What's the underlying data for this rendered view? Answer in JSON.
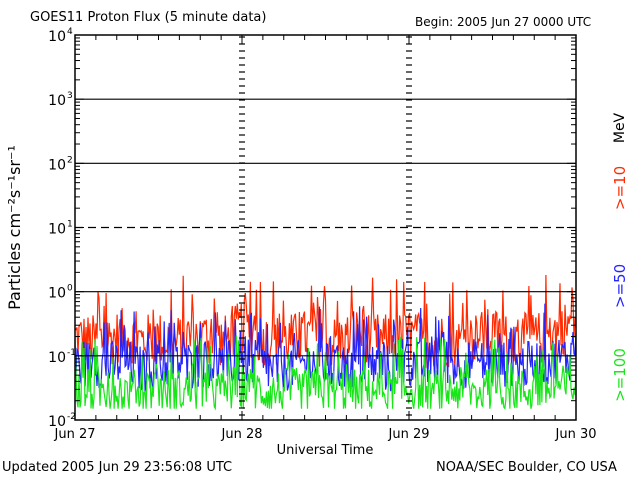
{
  "header": {
    "title": "GOES11 Proton Flux (5 minute data)",
    "begin": "Begin: 2005 Jun 27 0000 UTC"
  },
  "footer": {
    "updated": "Updated 2005 Jun 29 23:56:08 UTC",
    "credit": "NOAA/SEC Boulder, CO USA"
  },
  "legend": {
    "unit": "MeV",
    "channels": [
      {
        "label": ">=10",
        "color": "#ff2a00"
      },
      {
        "label": ">=50",
        "color": "#2424ff"
      },
      {
        "label": ">=100",
        "color": "#19e619"
      }
    ]
  },
  "chart_data": {
    "type": "line",
    "title": "GOES11 Proton Flux (5 minute data)",
    "xlabel": "Universal Time",
    "ylabel": "Particles cm⁻²s⁻¹sr⁻¹",
    "y_scale": "log",
    "ylim": [
      0.01,
      10000
    ],
    "y_ticks": [
      {
        "value": 10000,
        "base": "10",
        "exp": "4"
      },
      {
        "value": 1000,
        "base": "10",
        "exp": "3"
      },
      {
        "value": 100,
        "base": "10",
        "exp": "2"
      },
      {
        "value": 10,
        "base": "10",
        "exp": "1"
      },
      {
        "value": 1,
        "base": "10",
        "exp": "0"
      },
      {
        "value": 0.1,
        "base": "10",
        "exp": "-1"
      },
      {
        "value": 0.01,
        "base": "10",
        "exp": "-2"
      }
    ],
    "dashed_reference": 10,
    "x_ticks": [
      "Jun 27",
      "Jun 28",
      "Jun 29",
      "Jun 30"
    ],
    "x_range_days": [
      0,
      3
    ],
    "x": [
      0.0,
      0.1,
      0.2,
      0.3,
      0.4,
      0.5,
      0.6,
      0.7,
      0.8,
      0.9,
      1.0,
      1.1,
      1.2,
      1.3,
      1.4,
      1.5,
      1.6,
      1.7,
      1.8,
      1.9,
      2.0,
      2.1,
      2.2,
      2.3,
      2.4,
      2.5,
      2.6,
      2.7,
      2.8,
      2.9,
      3.0
    ],
    "series": [
      {
        "name": ">=10 MeV",
        "color": "#ff2a00",
        "values": [
          0.2,
          0.17,
          0.18,
          0.22,
          0.17,
          0.19,
          0.16,
          0.21,
          0.18,
          0.17,
          0.3,
          0.19,
          0.17,
          0.18,
          0.21,
          0.16,
          0.17,
          0.23,
          0.18,
          0.17,
          0.2,
          0.17,
          0.18,
          0.16,
          0.19,
          0.22,
          0.17,
          0.18,
          0.19,
          0.25,
          0.35
        ]
      },
      {
        "name": ">=50 MeV",
        "color": "#2424ff",
        "values": [
          0.07,
          0.08,
          0.07,
          0.08,
          0.06,
          0.07,
          0.08,
          0.07,
          0.08,
          0.07,
          0.09,
          0.07,
          0.06,
          0.07,
          0.08,
          0.07,
          0.06,
          0.08,
          0.07,
          0.06,
          0.08,
          0.07,
          0.09,
          0.07,
          0.08,
          0.07,
          0.08,
          0.07,
          0.08,
          0.09,
          0.1
        ]
      },
      {
        "name": ">=100 MeV",
        "color": "#19e619",
        "values": [
          0.03,
          0.028,
          0.03,
          0.027,
          0.029,
          0.031,
          0.028,
          0.03,
          0.027,
          0.029,
          0.032,
          0.029,
          0.027,
          0.03,
          0.028,
          0.03,
          0.029,
          0.028,
          0.03,
          0.027,
          0.031,
          0.029,
          0.028,
          0.03,
          0.027,
          0.029,
          0.031,
          0.028,
          0.03,
          0.032,
          0.034
        ]
      }
    ]
  }
}
